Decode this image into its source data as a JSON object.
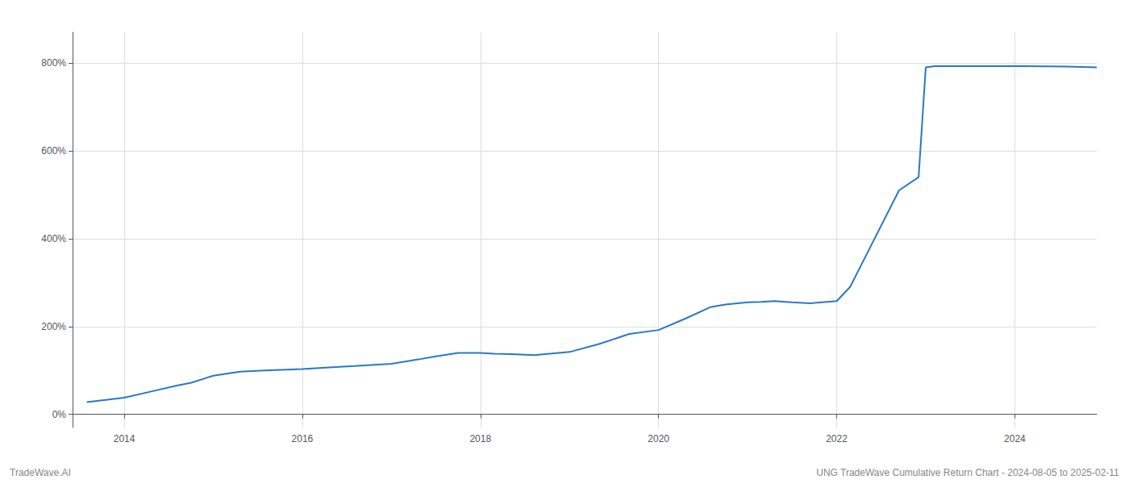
{
  "chart_data": {
    "type": "line",
    "annotations": [
      "TradeWave.AI",
      "UNG TradeWave Cumulative Return Chart - 2024-08-05 to 2025-02-11"
    ],
    "color": "#2878c8",
    "grid": true,
    "xlim": [
      2013.42,
      2024.92
    ],
    "ylim": [
      -30,
      870
    ],
    "xticks": [
      2014,
      2016,
      2018,
      2020,
      2022,
      2024
    ],
    "yticks": [
      {
        "value": 0,
        "label": "0%"
      },
      {
        "value": 200,
        "label": "200%"
      },
      {
        "value": 400,
        "label": "400%"
      },
      {
        "value": 600,
        "label": "600%"
      },
      {
        "value": 800,
        "label": "800%"
      }
    ],
    "x": [
      2013.58,
      2014.0,
      2014.3,
      2014.58,
      2014.75,
      2015.0,
      2015.3,
      2015.58,
      2016.0,
      2016.3,
      2016.58,
      2017.0,
      2017.3,
      2017.5,
      2017.75,
      2018.0,
      2018.15,
      2018.35,
      2018.6,
      2019.0,
      2019.33,
      2019.67,
      2020.0,
      2020.3,
      2020.58,
      2020.75,
      2021.0,
      2021.15,
      2021.3,
      2021.5,
      2021.7,
      2022.0,
      2022.15,
      2022.4,
      2022.7,
      2022.92,
      2023.0,
      2023.1,
      2023.15,
      2024.0,
      2024.58,
      2024.92
    ],
    "values": [
      28,
      38,
      52,
      65,
      72,
      88,
      97,
      100,
      103,
      107,
      110,
      115,
      125,
      132,
      140,
      140,
      138,
      137,
      135,
      142,
      160,
      183,
      192,
      218,
      244,
      250,
      255,
      256,
      258,
      255,
      253,
      258,
      290,
      390,
      510,
      540,
      790,
      793,
      793,
      793,
      792,
      790
    ]
  }
}
